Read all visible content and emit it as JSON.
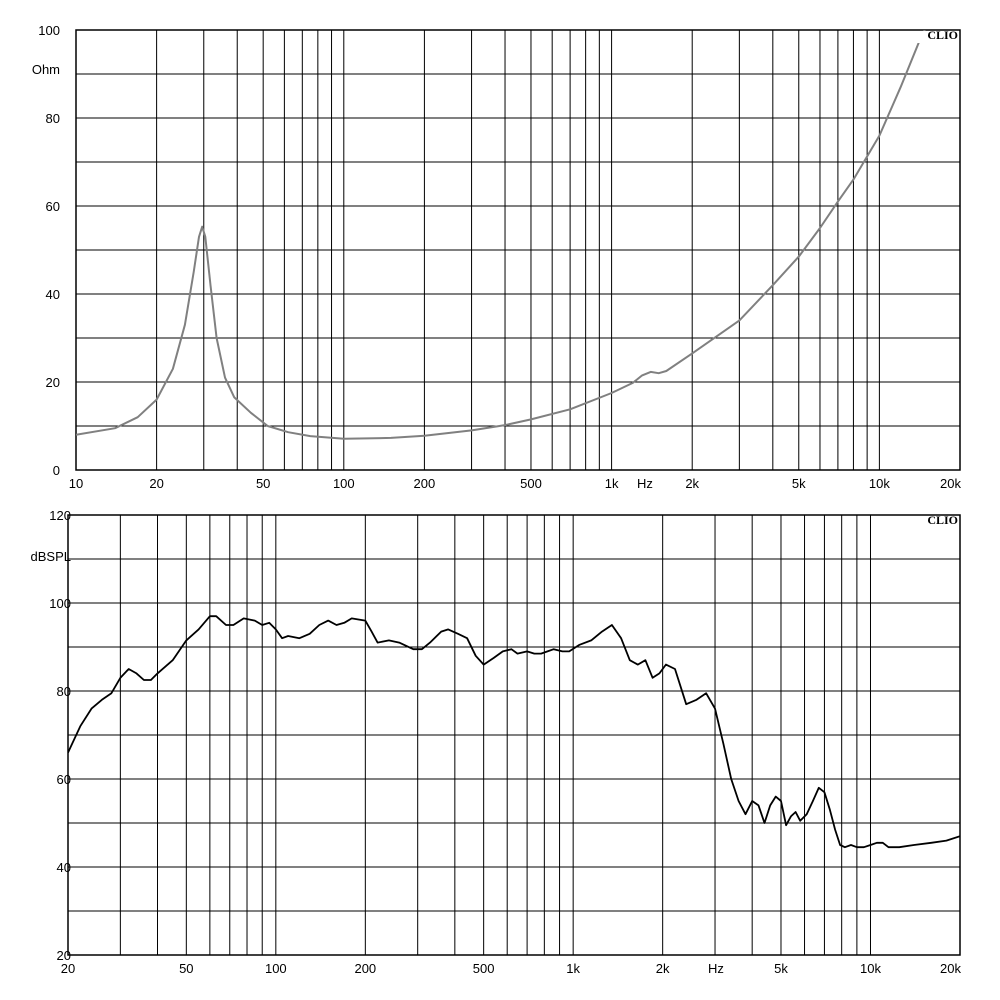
{
  "chart_data": [
    {
      "type": "line",
      "brand": "CLIO",
      "ylabel": "Ohm",
      "xunit": "Hz",
      "xscale": "log",
      "xlim": [
        10,
        20000
      ],
      "ylim": [
        0,
        100
      ],
      "grid": true,
      "x_tick_labels": [
        {
          "v": 10,
          "t": "10"
        },
        {
          "v": 20,
          "t": "20"
        },
        {
          "v": 50,
          "t": "50"
        },
        {
          "v": 100,
          "t": "100"
        },
        {
          "v": 200,
          "t": "200"
        },
        {
          "v": 500,
          "t": "500"
        },
        {
          "v": 1000,
          "t": "1k"
        },
        {
          "v": 2000,
          "t": "2k"
        },
        {
          "v": 5000,
          "t": "5k"
        },
        {
          "v": 10000,
          "t": "10k"
        },
        {
          "v": 20000,
          "t": "20k"
        }
      ],
      "y_tick_labels": [
        {
          "v": 0,
          "t": "0"
        },
        {
          "v": 20,
          "t": "20"
        },
        {
          "v": 40,
          "t": "40"
        },
        {
          "v": 60,
          "t": "60"
        },
        {
          "v": 80,
          "t": "80"
        },
        {
          "v": 100,
          "t": "100"
        }
      ],
      "y_grid_step": 10,
      "line_color": "#808080",
      "series": [
        {
          "points": [
            [
              10,
              8.0
            ],
            [
              14,
              9.5
            ],
            [
              17,
              12
            ],
            [
              20,
              16
            ],
            [
              23,
              23
            ],
            [
              25.5,
              33
            ],
            [
              27.5,
              45
            ],
            [
              28.8,
              53
            ],
            [
              29.6,
              55.3
            ],
            [
              30.4,
              53
            ],
            [
              31.8,
              42
            ],
            [
              33.5,
              30
            ],
            [
              36,
              21
            ],
            [
              39,
              16.5
            ],
            [
              45,
              13
            ],
            [
              52,
              10
            ],
            [
              62,
              8.6
            ],
            [
              75,
              7.7
            ],
            [
              100,
              7.1
            ],
            [
              150,
              7.3
            ],
            [
              200,
              7.8
            ],
            [
              300,
              9.0
            ],
            [
              400,
              10.2
            ],
            [
              500,
              11.5
            ],
            [
              700,
              13.8
            ],
            [
              1000,
              17.5
            ],
            [
              1200,
              19.8
            ],
            [
              1300,
              21.5
            ],
            [
              1400,
              22.3
            ],
            [
              1500,
              22
            ],
            [
              1600,
              22.5
            ],
            [
              2000,
              26.5
            ],
            [
              3000,
              34
            ],
            [
              4000,
              42
            ],
            [
              5000,
              48.5
            ],
            [
              6000,
              55
            ],
            [
              7000,
              61
            ],
            [
              8000,
              66
            ],
            [
              10000,
              76
            ],
            [
              12000,
              87
            ],
            [
              14000,
              97
            ],
            [
              15000,
              101
            ]
          ]
        }
      ]
    },
    {
      "type": "line",
      "brand": "CLIO",
      "ylabel": "dBSPL",
      "xunit": "Hz",
      "xscale": "log",
      "xlim": [
        20,
        20000
      ],
      "ylim": [
        20,
        120
      ],
      "grid": true,
      "x_tick_labels": [
        {
          "v": 20,
          "t": "20"
        },
        {
          "v": 50,
          "t": "50"
        },
        {
          "v": 100,
          "t": "100"
        },
        {
          "v": 200,
          "t": "200"
        },
        {
          "v": 500,
          "t": "500"
        },
        {
          "v": 1000,
          "t": "1k"
        },
        {
          "v": 2000,
          "t": "2k"
        },
        {
          "v": 5000,
          "t": "5k"
        },
        {
          "v": 10000,
          "t": "10k"
        },
        {
          "v": 20000,
          "t": "20k"
        }
      ],
      "y_tick_labels": [
        {
          "v": 20,
          "t": "20"
        },
        {
          "v": 40,
          "t": "40"
        },
        {
          "v": 60,
          "t": "60"
        },
        {
          "v": 80,
          "t": "80"
        },
        {
          "v": 100,
          "t": "100"
        },
        {
          "v": 120,
          "t": "120"
        }
      ],
      "y_grid_step": 10,
      "line_color": "#000000",
      "series": [
        {
          "points": [
            [
              20,
              66
            ],
            [
              22,
              72
            ],
            [
              24,
              76
            ],
            [
              26,
              78
            ],
            [
              28,
              79.5
            ],
            [
              30,
              83
            ],
            [
              32,
              85
            ],
            [
              34,
              84
            ],
            [
              36,
              82.5
            ],
            [
              38,
              82.5
            ],
            [
              40,
              84
            ],
            [
              45,
              87
            ],
            [
              50,
              91.5
            ],
            [
              55,
              94
            ],
            [
              60,
              97
            ],
            [
              63,
              97
            ],
            [
              68,
              95
            ],
            [
              72,
              95
            ],
            [
              78,
              96.5
            ],
            [
              85,
              96
            ],
            [
              90,
              95
            ],
            [
              95,
              95.5
            ],
            [
              100,
              94
            ],
            [
              105,
              92
            ],
            [
              110,
              92.5
            ],
            [
              120,
              92
            ],
            [
              130,
              93
            ],
            [
              140,
              95
            ],
            [
              150,
              96
            ],
            [
              160,
              95
            ],
            [
              170,
              95.5
            ],
            [
              180,
              96.5
            ],
            [
              200,
              96
            ],
            [
              210,
              93.5
            ],
            [
              220,
              91
            ],
            [
              240,
              91.5
            ],
            [
              260,
              91
            ],
            [
              290,
              89.5
            ],
            [
              310,
              89.5
            ],
            [
              330,
              91
            ],
            [
              360,
              93.5
            ],
            [
              380,
              94
            ],
            [
              410,
              93
            ],
            [
              440,
              92
            ],
            [
              470,
              88
            ],
            [
              500,
              86
            ],
            [
              540,
              87.5
            ],
            [
              580,
              89
            ],
            [
              620,
              89.5
            ],
            [
              650,
              88.5
            ],
            [
              700,
              89
            ],
            [
              740,
              88.5
            ],
            [
              780,
              88.5
            ],
            [
              820,
              89
            ],
            [
              860,
              89.5
            ],
            [
              920,
              89
            ],
            [
              970,
              89
            ],
            [
              1050,
              90.5
            ],
            [
              1150,
              91.5
            ],
            [
              1250,
              93.5
            ],
            [
              1350,
              95
            ],
            [
              1450,
              92
            ],
            [
              1550,
              87
            ],
            [
              1650,
              86
            ],
            [
              1750,
              87
            ],
            [
              1850,
              83
            ],
            [
              1950,
              84
            ],
            [
              2050,
              86
            ],
            [
              2200,
              85
            ],
            [
              2400,
              77
            ],
            [
              2600,
              78
            ],
            [
              2800,
              79.5
            ],
            [
              3000,
              76
            ],
            [
              3200,
              68
            ],
            [
              3400,
              60
            ],
            [
              3600,
              55
            ],
            [
              3800,
              52
            ],
            [
              4000,
              55
            ],
            [
              4200,
              54
            ],
            [
              4400,
              50
            ],
            [
              4600,
              54
            ],
            [
              4800,
              56
            ],
            [
              5000,
              55
            ],
            [
              5200,
              49.5
            ],
            [
              5400,
              51.5
            ],
            [
              5600,
              52.5
            ],
            [
              5800,
              50.5
            ],
            [
              6100,
              52
            ],
            [
              6400,
              55
            ],
            [
              6700,
              58
            ],
            [
              7000,
              57
            ],
            [
              7300,
              53
            ],
            [
              7600,
              48.5
            ],
            [
              7900,
              45
            ],
            [
              8200,
              44.5
            ],
            [
              8600,
              45
            ],
            [
              9000,
              44.5
            ],
            [
              9500,
              44.5
            ],
            [
              10000,
              45
            ],
            [
              10500,
              45.5
            ],
            [
              11000,
              45.5
            ],
            [
              11500,
              44.5
            ],
            [
              12500,
              44.5
            ],
            [
              14000,
              45
            ],
            [
              16000,
              45.5
            ],
            [
              18000,
              46
            ],
            [
              20000,
              47
            ]
          ]
        }
      ]
    }
  ]
}
